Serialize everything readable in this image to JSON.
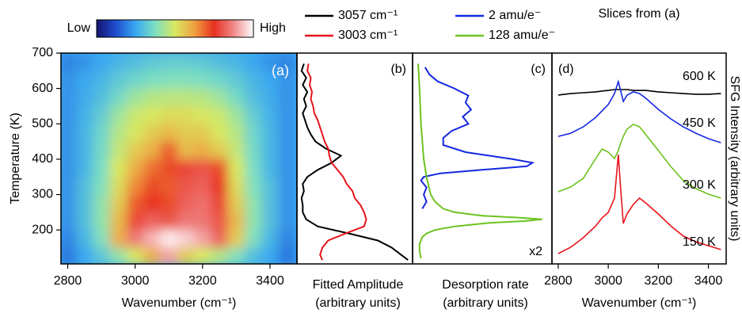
{
  "chart_data": [
    {
      "type": "heatmap",
      "panel_label": "(a)",
      "xlabel": "Wavenumber (cm⁻¹)",
      "ylabel": "Temperature (K)",
      "colorbar_low": "Low",
      "colorbar_high": "High",
      "colorscale": [
        "#14146e",
        "#1f4fd0",
        "#3aa8f0",
        "#7ee0c0",
        "#d8e860",
        "#f0a040",
        "#e83020",
        "#f08a8a",
        "#ffffff"
      ],
      "xlim": [
        2780,
        3480
      ],
      "ylim": [
        104,
        700
      ],
      "xticks": [
        2800,
        3000,
        3200,
        3400
      ],
      "yticks": [
        200,
        300,
        400,
        500,
        600,
        700
      ],
      "x": [
        2800,
        2850,
        2900,
        2950,
        3000,
        3050,
        3100,
        3150,
        3200,
        3250,
        3300,
        3350,
        3400,
        3450
      ],
      "y": [
        675,
        625,
        575,
        525,
        475,
        425,
        375,
        325,
        275,
        225,
        175,
        125
      ],
      "z": [
        [
          0.2,
          0.22,
          0.25,
          0.28,
          0.3,
          0.32,
          0.33,
          0.33,
          0.32,
          0.3,
          0.28,
          0.25,
          0.22,
          0.2
        ],
        [
          0.22,
          0.25,
          0.28,
          0.32,
          0.35,
          0.37,
          0.38,
          0.38,
          0.37,
          0.35,
          0.32,
          0.28,
          0.25,
          0.22
        ],
        [
          0.22,
          0.26,
          0.3,
          0.36,
          0.42,
          0.45,
          0.46,
          0.46,
          0.45,
          0.42,
          0.36,
          0.3,
          0.26,
          0.22
        ],
        [
          0.22,
          0.27,
          0.33,
          0.42,
          0.48,
          0.5,
          0.52,
          0.52,
          0.5,
          0.48,
          0.42,
          0.33,
          0.27,
          0.22
        ],
        [
          0.22,
          0.28,
          0.35,
          0.45,
          0.5,
          0.55,
          0.58,
          0.55,
          0.55,
          0.5,
          0.45,
          0.35,
          0.28,
          0.22
        ],
        [
          0.22,
          0.28,
          0.36,
          0.47,
          0.55,
          0.6,
          0.7,
          0.58,
          0.6,
          0.55,
          0.47,
          0.36,
          0.28,
          0.22
        ],
        [
          0.22,
          0.28,
          0.37,
          0.5,
          0.6,
          0.68,
          0.72,
          0.78,
          0.8,
          0.72,
          0.5,
          0.37,
          0.28,
          0.22
        ],
        [
          0.22,
          0.3,
          0.38,
          0.52,
          0.65,
          0.72,
          0.7,
          0.8,
          0.82,
          0.75,
          0.52,
          0.38,
          0.3,
          0.22
        ],
        [
          0.22,
          0.3,
          0.4,
          0.55,
          0.7,
          0.75,
          0.72,
          0.82,
          0.84,
          0.78,
          0.55,
          0.4,
          0.3,
          0.22
        ],
        [
          0.22,
          0.3,
          0.4,
          0.58,
          0.78,
          0.82,
          0.8,
          0.85,
          0.85,
          0.8,
          0.58,
          0.4,
          0.3,
          0.22
        ],
        [
          0.2,
          0.28,
          0.38,
          0.6,
          0.85,
          0.92,
          0.98,
          0.95,
          0.9,
          0.82,
          0.55,
          0.38,
          0.28,
          0.2
        ],
        [
          0.18,
          0.25,
          0.32,
          0.4,
          0.5,
          0.6,
          0.9,
          0.55,
          0.5,
          0.45,
          0.38,
          0.3,
          0.25,
          0.18
        ]
      ]
    },
    {
      "type": "profile",
      "panel_label": "(b)",
      "xlabel": "Fitted Amplitude",
      "xlabel_sub": "(arbitrary units)",
      "xlim": [
        0,
        1
      ],
      "ylim": [
        104,
        700
      ],
      "series": [
        {
          "name": "3057 cm⁻¹",
          "color": "#000000",
          "y": [
            670,
            650,
            630,
            610,
            590,
            570,
            550,
            530,
            510,
            490,
            470,
            450,
            430,
            410,
            390,
            370,
            350,
            330,
            310,
            290,
            270,
            250,
            230,
            210,
            190,
            170,
            150,
            130,
            115
          ],
          "values": [
            0.06,
            0.04,
            0.08,
            0.05,
            0.09,
            0.06,
            0.08,
            0.05,
            0.07,
            0.09,
            0.12,
            0.16,
            0.25,
            0.38,
            0.3,
            0.18,
            0.09,
            0.05,
            0.06,
            0.04,
            0.05,
            0.05,
            0.08,
            0.18,
            0.45,
            0.7,
            0.82,
            0.9,
            0.96
          ]
        },
        {
          "name": "3003 cm⁻¹",
          "color": "#e8141c",
          "y": [
            670,
            650,
            630,
            610,
            590,
            570,
            550,
            530,
            510,
            490,
            470,
            450,
            430,
            410,
            390,
            370,
            350,
            330,
            310,
            290,
            270,
            250,
            230,
            210,
            190,
            170,
            150,
            130,
            115
          ],
          "values": [
            0.1,
            0.09,
            0.12,
            0.11,
            0.13,
            0.12,
            0.14,
            0.15,
            0.18,
            0.2,
            0.22,
            0.24,
            0.27,
            0.28,
            0.3,
            0.35,
            0.4,
            0.43,
            0.48,
            0.5,
            0.55,
            0.58,
            0.6,
            0.58,
            0.42,
            0.27,
            0.22,
            0.2,
            0.22
          ]
        }
      ]
    },
    {
      "type": "profile",
      "panel_label": "(c)",
      "xlabel": "Desorption rate",
      "xlabel_sub": "(arbitrary units)",
      "annotation": "x2",
      "xlim": [
        0,
        1
      ],
      "ylim": [
        104,
        700
      ],
      "series": [
        {
          "name": "2 amu/e⁻",
          "color": "#1428e0",
          "y": [
            660,
            640,
            620,
            600,
            580,
            560,
            540,
            520,
            500,
            480,
            460,
            440,
            420,
            400,
            390,
            380,
            370,
            360,
            350,
            340,
            320,
            300,
            280,
            260
          ],
          "values": [
            0.09,
            0.12,
            0.18,
            0.3,
            0.4,
            0.38,
            0.42,
            0.36,
            0.4,
            0.28,
            0.22,
            0.22,
            0.38,
            0.72,
            0.86,
            0.82,
            0.5,
            0.2,
            0.08,
            0.06,
            0.1,
            0.08,
            0.1,
            0.07
          ]
        },
        {
          "name": "128 amu/e⁻",
          "color": "#6cc31e",
          "y": [
            670,
            600,
            500,
            400,
            350,
            300,
            280,
            260,
            250,
            240,
            235,
            230,
            225,
            220,
            210,
            200,
            190,
            180,
            160,
            140,
            120
          ],
          "values": [
            0.04,
            0.05,
            0.06,
            0.08,
            0.1,
            0.13,
            0.16,
            0.22,
            0.3,
            0.5,
            0.75,
            0.93,
            0.8,
            0.55,
            0.3,
            0.16,
            0.1,
            0.07,
            0.05,
            0.05,
            0.06
          ]
        }
      ]
    },
    {
      "type": "line",
      "panel_label": "(d)",
      "title": "Slices from (a)",
      "xlabel": "Wavenumber (cm⁻¹)",
      "ylabel": "SFG Intensity (arbitrary units)",
      "xlim": [
        2775,
        3471
      ],
      "ylim": [
        0,
        10
      ],
      "xticks": [
        2800,
        3000,
        3200,
        3400
      ],
      "x": [
        2800,
        2850,
        2900,
        2950,
        2975,
        3000,
        3025,
        3040,
        3050,
        3060,
        3075,
        3100,
        3125,
        3150,
        3200,
        3250,
        3300,
        3350,
        3400,
        3450
      ],
      "series": [
        {
          "name": "600 K",
          "color": "#000000",
          "values": [
            8.01,
            8.08,
            8.12,
            8.16,
            8.2,
            8.23,
            8.27,
            8.27,
            8.27,
            8.27,
            8.27,
            8.23,
            8.23,
            8.23,
            8.16,
            8.12,
            8.08,
            8.05,
            8.05,
            8.08
          ]
        },
        {
          "name": "450 K",
          "color": "#1428e0",
          "values": [
            6.05,
            6.2,
            6.5,
            6.95,
            7.26,
            7.56,
            8.08,
            8.65,
            8.2,
            7.71,
            8.0,
            8.16,
            8.08,
            7.86,
            7.33,
            6.88,
            6.5,
            6.2,
            5.94,
            5.75
          ]
        },
        {
          "name": "300 K",
          "color": "#6cc31e",
          "values": [
            3.42,
            3.65,
            4.06,
            5.0,
            5.45,
            5.3,
            5.0,
            5.38,
            5.75,
            6.05,
            6.39,
            6.62,
            6.5,
            6.13,
            5.38,
            4.62,
            3.95,
            3.57,
            3.31,
            3.12
          ]
        },
        {
          "name": "150 K",
          "color": "#e8141c",
          "values": [
            0.49,
            0.79,
            1.24,
            1.8,
            2.18,
            2.44,
            3.12,
            5.19,
            3.5,
            1.92,
            2.37,
            2.82,
            3.12,
            2.89,
            2.37,
            1.8,
            1.32,
            1.05,
            0.86,
            0.68
          ]
        }
      ]
    }
  ]
}
